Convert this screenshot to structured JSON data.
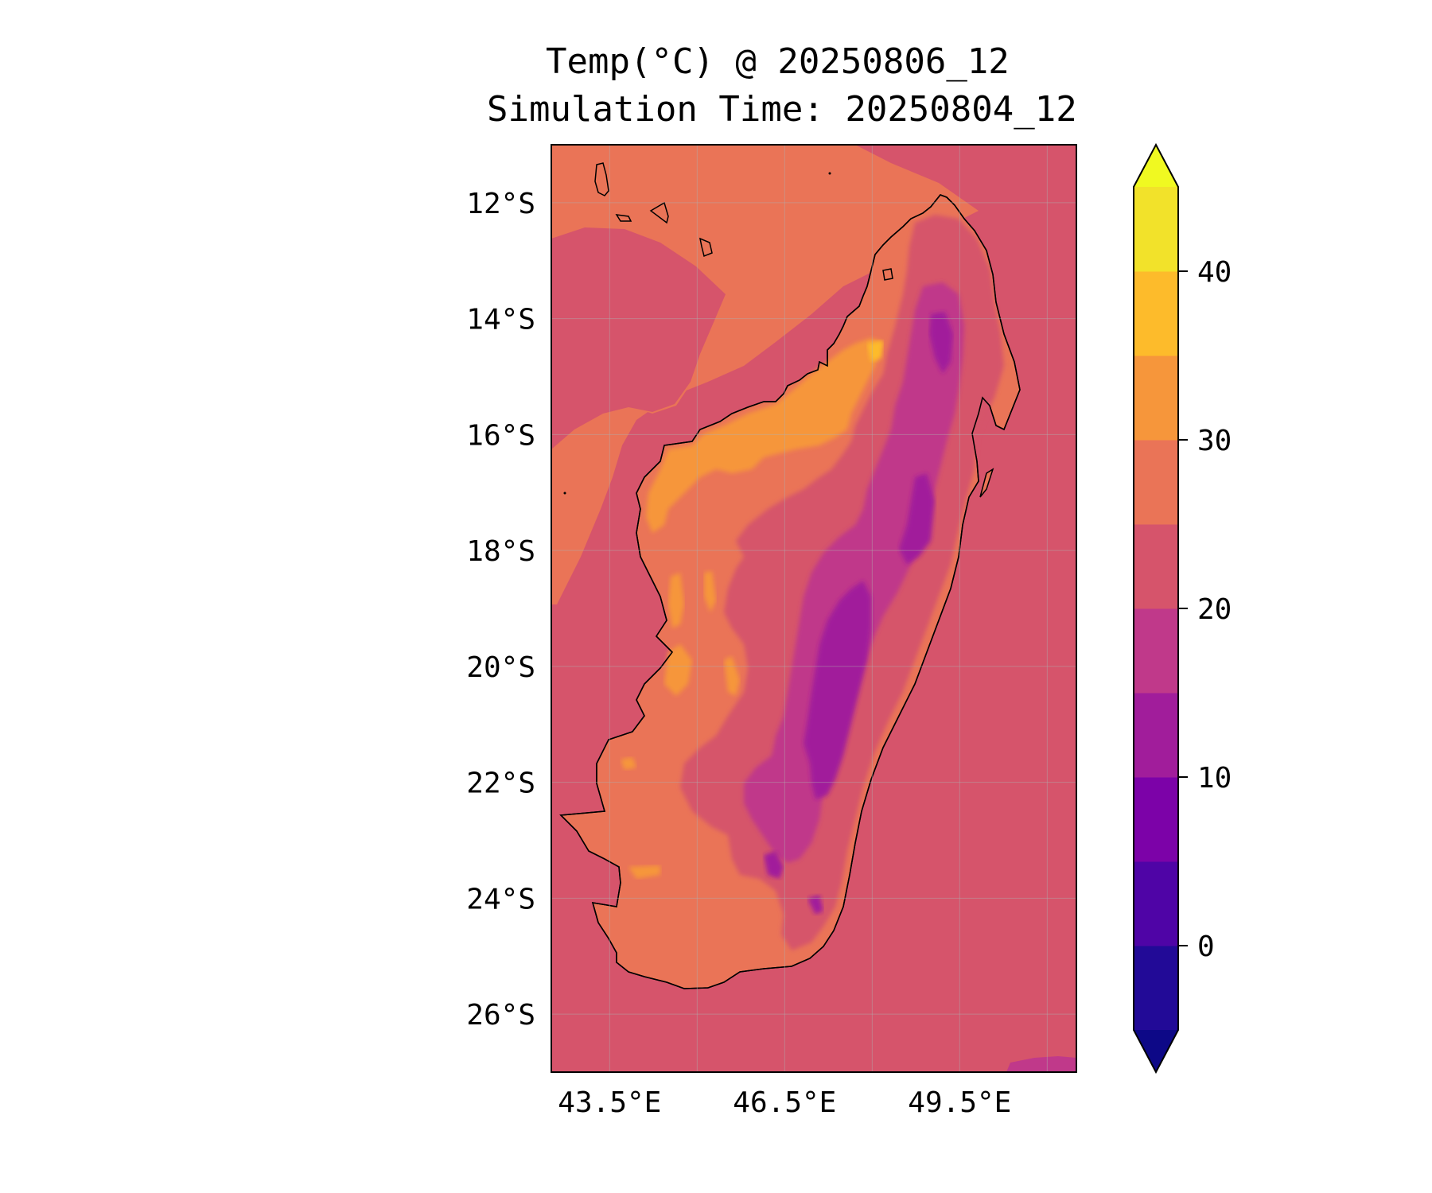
{
  "title_line1": "Temp(°C) @ 20250806_12",
  "title_line2": "Simulation Time: 20250804_12",
  "map": {
    "lat_range": [
      -27,
      -11
    ],
    "lon_range": [
      42.5,
      51.5
    ],
    "lat_ticks": [
      {
        "value": -12,
        "label": "12°S"
      },
      {
        "value": -14,
        "label": "14°S"
      },
      {
        "value": -16,
        "label": "16°S"
      },
      {
        "value": -18,
        "label": "18°S"
      },
      {
        "value": -20,
        "label": "20°S"
      },
      {
        "value": -22,
        "label": "22°S"
      },
      {
        "value": -24,
        "label": "24°S"
      },
      {
        "value": -26,
        "label": "26°S"
      }
    ],
    "lon_ticks": [
      {
        "value": 43.5,
        "label": "43.5°E"
      },
      {
        "value": 46.5,
        "label": "46.5°E"
      },
      {
        "value": 49.5,
        "label": "49.5°E"
      }
    ],
    "ocean_color": "#d6546b"
  },
  "colorbar": {
    "levels": [
      -5,
      0,
      5,
      10,
      15,
      20,
      25,
      30,
      35,
      40,
      45
    ],
    "colors": [
      "#220a97",
      "#4f04a6",
      "#7c02a8",
      "#a11d9b",
      "#c0398a",
      "#d6546b",
      "#ea7457",
      "#f6963b",
      "#fdbb2b",
      "#f2e22a"
    ],
    "under_color": "#0d0887",
    "over_color": "#f0f921",
    "tick_labels": [
      {
        "value": 0,
        "label": "0"
      },
      {
        "value": 10,
        "label": "10"
      },
      {
        "value": 20,
        "label": "20"
      },
      {
        "value": 30,
        "label": "30"
      },
      {
        "value": 40,
        "label": "40"
      }
    ]
  }
}
